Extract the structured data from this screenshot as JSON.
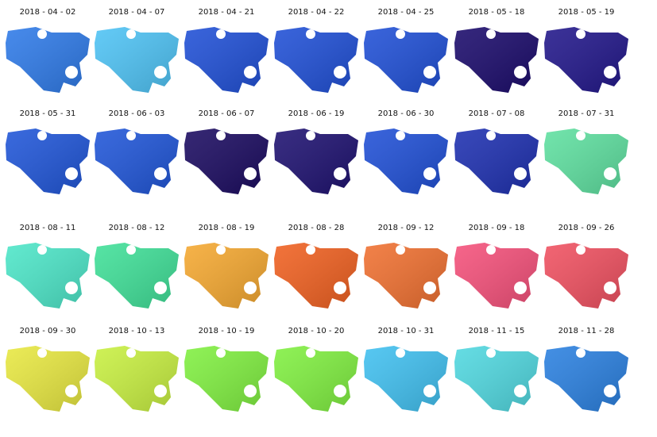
{
  "panels": [
    {
      "date": "2018 - 04 - 02",
      "color": "#2e7ae8"
    },
    {
      "date": "2018 - 04 - 07",
      "color": "#4ec3f5"
    },
    {
      "date": "2018 - 04 - 21",
      "color": "#1f4fd6"
    },
    {
      "date": "2018 - 04 - 22",
      "color": "#1f4fd6"
    },
    {
      "date": "2018 - 04 - 25",
      "color": "#1f4fd6"
    },
    {
      "date": "2018 - 05 - 18",
      "color": "#1a0a6b"
    },
    {
      "date": "2018 - 05 - 19",
      "color": "#21168a"
    },
    {
      "date": "2018 - 05 - 31",
      "color": "#1f55d8"
    },
    {
      "date": "2018 - 06 - 03",
      "color": "#1f55d8"
    },
    {
      "date": "2018 - 06 - 07",
      "color": "#1a0a60"
    },
    {
      "date": "2018 - 06 - 19",
      "color": "#1d1070"
    },
    {
      "date": "2018 - 06 - 30",
      "color": "#1f4fd6"
    },
    {
      "date": "2018 - 07 - 08",
      "color": "#1d2fb0"
    },
    {
      "date": "2018 - 07 - 31",
      "color": "#5ee0a0"
    },
    {
      "date": "2018 - 08 - 11",
      "color": "#4ce6c8"
    },
    {
      "date": "2018 - 08 - 12",
      "color": "#3fe098"
    },
    {
      "date": "2018 - 08 - 19",
      "color": "#f5a830"
    },
    {
      "date": "2018 - 08 - 28",
      "color": "#f06020"
    },
    {
      "date": "2018 - 09 - 12",
      "color": "#f07030"
    },
    {
      "date": "2018 - 09 - 18",
      "color": "#f5507a"
    },
    {
      "date": "2018 - 09 - 26",
      "color": "#f05060"
    },
    {
      "date": "2018 - 09 - 30",
      "color": "#e8e840"
    },
    {
      "date": "2018 - 10 - 13",
      "color": "#c8f040"
    },
    {
      "date": "2018 - 10 - 19",
      "color": "#80f040"
    },
    {
      "date": "2018 - 10 - 20",
      "color": "#80f040"
    },
    {
      "date": "2018 - 10 - 31",
      "color": "#40c0f0"
    },
    {
      "date": "2018 - 11 - 15",
      "color": "#50d8e0"
    },
    {
      "date": "2018 - 11 - 28",
      "color": "#2a80e0"
    }
  ]
}
